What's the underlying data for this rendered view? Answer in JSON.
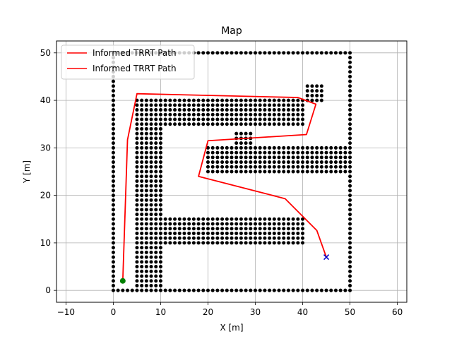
{
  "chart_data": {
    "type": "scatter",
    "title": "Map",
    "xlabel": "X [m]",
    "ylabel": "Y [m]",
    "xlim": [
      -12,
      62
    ],
    "ylim": [
      -2.5,
      52.5
    ],
    "xticks": [
      -10,
      0,
      10,
      20,
      30,
      40,
      50,
      60
    ],
    "yticks": [
      0,
      10,
      20,
      30,
      40,
      50
    ],
    "xtick_labels": [
      "−10",
      "0",
      "10",
      "20",
      "30",
      "40",
      "50",
      "60"
    ],
    "ytick_labels": [
      "0",
      "10",
      "20",
      "30",
      "40",
      "50"
    ],
    "grid": true,
    "legend_position": "top-left",
    "legend": [
      {
        "label": "Informed TRRT Path",
        "color": "#ff0000"
      },
      {
        "label": "Informed TRRT Path",
        "color": "#ff0000"
      }
    ],
    "obstacles": {
      "color": "#000000",
      "step": 1,
      "lines": [
        {
          "from": [
            0,
            0
          ],
          "to": [
            50,
            0
          ]
        },
        {
          "from": [
            0,
            0
          ],
          "to": [
            0,
            50
          ]
        },
        {
          "from": [
            0,
            50
          ],
          "to": [
            50,
            50
          ]
        },
        {
          "from": [
            50,
            0
          ],
          "to": [
            50,
            50
          ]
        }
      ],
      "blocks": [
        {
          "x": [
            5,
            10
          ],
          "y": [
            1,
            40
          ]
        },
        {
          "x": [
            10,
            40
          ],
          "y": [
            35,
            40
          ]
        },
        {
          "x": [
            10,
            40
          ],
          "y": [
            10,
            15
          ]
        },
        {
          "x": [
            20,
            49
          ],
          "y": [
            25,
            30
          ]
        },
        {
          "x": [
            26,
            29
          ],
          "y": [
            31,
            33
          ]
        },
        {
          "x": [
            41,
            44
          ],
          "y": [
            40,
            43
          ]
        }
      ]
    },
    "series": [
      {
        "name": "Informed TRRT Path",
        "type": "line",
        "color": "#ff0000",
        "x": [
          2,
          3,
          5,
          39,
          42.8,
          40.8,
          20,
          18,
          36.3,
          43,
          45
        ],
        "y": [
          2,
          31.7,
          41.4,
          40.6,
          39.2,
          32.8,
          31.5,
          24,
          19.3,
          12.6,
          7
        ]
      }
    ],
    "start": {
      "x": 2,
      "y": 2,
      "color": "#008000",
      "marker": "circle"
    },
    "goal": {
      "x": 45,
      "y": 7,
      "color": "#0000cc",
      "marker": "x"
    }
  }
}
